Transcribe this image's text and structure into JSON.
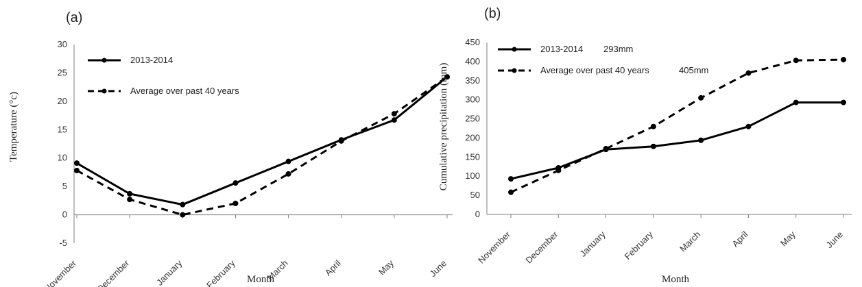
{
  "chart_data": [
    {
      "type": "line",
      "panel_label": "(a)",
      "categories": [
        "November",
        "December",
        "January",
        "February",
        "March",
        "April",
        "May",
        "June"
      ],
      "ylabel": "Temperature (°c)",
      "xlabel": "Month",
      "ylim": [
        -5,
        30
      ],
      "yticks": [
        "-5",
        "0",
        "5",
        "10",
        "15",
        "20",
        "25",
        "30"
      ],
      "grid": false,
      "legend_position": "top-left",
      "series": [
        {
          "name": "2013-2014",
          "style": "solid",
          "color": "#000000",
          "values": [
            9.1,
            3.7,
            1.8,
            5.6,
            9.4,
            13.2,
            16.7,
            24.3
          ]
        },
        {
          "name": "Average over past 40 years",
          "style": "dashed",
          "color": "#000000",
          "values": [
            7.8,
            2.7,
            0.0,
            2.0,
            7.2,
            13.0,
            17.8,
            24.3
          ]
        }
      ]
    },
    {
      "type": "line",
      "panel_label": "(b)",
      "categories": [
        "November",
        "December",
        "January",
        "February",
        "March",
        "April",
        "May",
        "June"
      ],
      "ylabel": "Cumulative precipitation (mm)",
      "xlabel": "Month",
      "ylim": [
        0,
        450
      ],
      "yticks": [
        "0",
        "50",
        "100",
        "150",
        "200",
        "250",
        "300",
        "350",
        "400",
        "450"
      ],
      "grid": false,
      "legend_position": "top-left",
      "series": [
        {
          "name": "2013-2014",
          "total_label": "293mm",
          "style": "solid",
          "color": "#000000",
          "values": [
            93,
            122,
            170,
            178,
            194,
            230,
            293,
            293
          ]
        },
        {
          "name": "Average over past 40 years",
          "total_label": "405mm",
          "style": "dashed",
          "color": "#000000",
          "values": [
            58,
            115,
            172,
            230,
            305,
            370,
            403,
            405
          ]
        }
      ]
    }
  ]
}
